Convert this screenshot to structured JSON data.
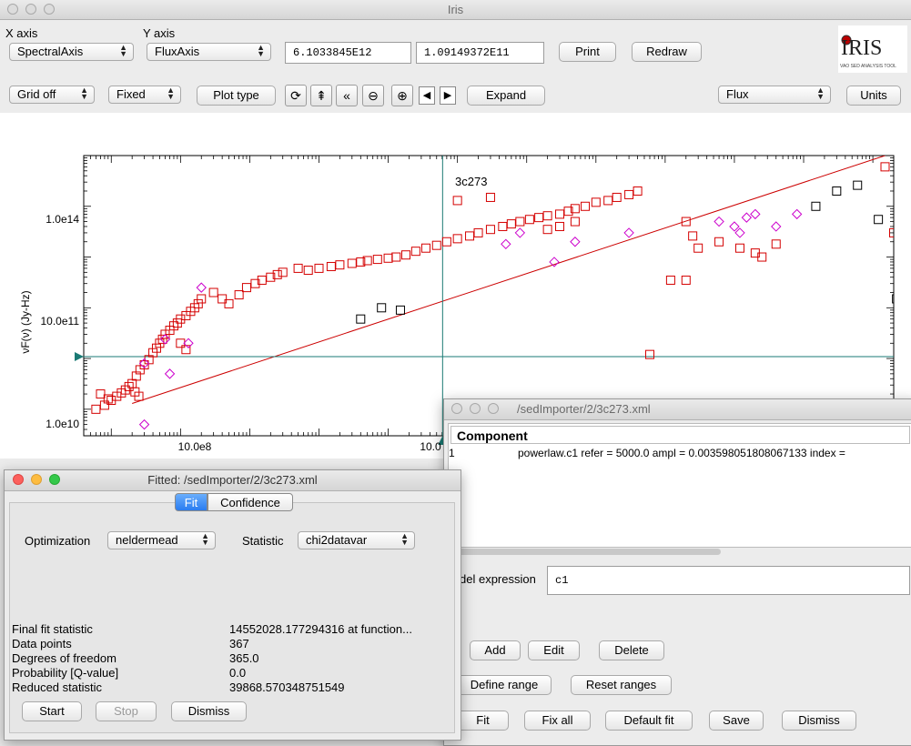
{
  "main_window": {
    "title": "Iris",
    "x_axis_label": "X axis",
    "y_axis_label": "Y axis",
    "x_axis_value": "SpectralAxis",
    "y_axis_value": "FluxAxis",
    "x_coord": "6.1033845E12",
    "y_coord": "1.09149372E11",
    "print_label": "Print",
    "redraw_label": "Redraw",
    "logo_text": "IRIS",
    "logo_sub": "VAO SED ANALYSIS TOOL",
    "grid_value": "Grid off",
    "scale_value": "Fixed",
    "plot_type_label": "Plot type",
    "expand_label": "Expand",
    "flux_value": "Flux",
    "units_label": "Units"
  },
  "plot": {
    "title": "3c273",
    "ylabel": "νF(ν) (Jy-Hz)",
    "y_ticks": [
      "1.0e14",
      "10.0e11",
      "1.0e10"
    ],
    "x_ticks": [
      "10.0e8",
      "10.0"
    ]
  },
  "chart_data": {
    "type": "scatter",
    "title": "3c273",
    "xlabel": "",
    "ylabel": "νF(ν) (Jy-Hz)",
    "x_scale": "log",
    "y_scale": "log",
    "xlim": [
      40000000.0,
      2e+19
    ],
    "ylim": [
      3000000000.0,
      1000000000000000.0
    ],
    "grid": false,
    "crosshair": {
      "x": 6103384500000.0,
      "y": 109149372000.0
    },
    "fit_line": {
      "x": [
        200000000.0,
        1.5e+19
      ],
      "y": [
        13000000000.0,
        1000000000000000.0
      ],
      "color": "#cc0000"
    },
    "series": [
      {
        "marker": "square",
        "color": "#d40000",
        "points": [
          [
            60000000.0,
            10000000000.0
          ],
          [
            70000000.0,
            20000000000.0
          ],
          [
            80000000.0,
            12000000000.0
          ],
          [
            90000000.0,
            16000000000.0
          ],
          [
            100000000.0,
            15000000000.0
          ],
          [
            120000000.0,
            18000000000.0
          ],
          [
            140000000.0,
            21000000000.0
          ],
          [
            160000000.0,
            24000000000.0
          ],
          [
            180000000.0,
            28000000000.0
          ],
          [
            200000000.0,
            32000000000.0
          ],
          [
            230000000.0,
            45000000000.0
          ],
          [
            260000000.0,
            60000000000.0
          ],
          [
            300000000.0,
            75000000000.0
          ],
          [
            350000000.0,
            95000000000.0
          ],
          [
            400000000.0,
            130000000000.0
          ],
          [
            450000000.0,
            160000000000.0
          ],
          [
            500000000.0,
            200000000000.0
          ],
          [
            550000000.0,
            240000000000.0
          ],
          [
            600000000.0,
            300000000000.0
          ],
          [
            700000000.0,
            360000000000.0
          ],
          [
            800000000.0,
            440000000000.0
          ],
          [
            900000000.0,
            500000000000.0
          ],
          [
            1000000000.0,
            600000000000.0
          ],
          [
            1200000000.0,
            700000000000.0
          ],
          [
            1400000000.0,
            850000000000.0
          ],
          [
            1600000000.0,
            1000000000000.0
          ],
          [
            1800000000.0,
            1200000000000.0
          ],
          [
            2000000000.0,
            1500000000000.0
          ],
          [
            1000000000.0,
            200000000000.0
          ],
          [
            1200000000.0,
            150000000000.0
          ],
          [
            220000000.0,
            22000000000.0
          ],
          [
            250000000.0,
            18000000000.0
          ],
          [
            3000000000.0,
            2000000000000.0
          ],
          [
            4000000000.0,
            1500000000000.0
          ],
          [
            5000000000.0,
            1200000000000.0
          ],
          [
            7000000000.0,
            1800000000000.0
          ],
          [
            9000000000.0,
            2500000000000.0
          ],
          [
            12000000000.0,
            3000000000000.0
          ],
          [
            15000000000.0,
            3500000000000.0
          ],
          [
            20000000000.0,
            4000000000000.0
          ],
          [
            25000000000.0,
            4500000000000.0
          ],
          [
            30000000000.0,
            5000000000000.0
          ],
          [
            50000000000.0,
            6000000000000.0
          ],
          [
            70000000000.0,
            5500000000000.0
          ],
          [
            100000000000.0,
            6000000000000.0
          ],
          [
            150000000000.0,
            6500000000000.0
          ],
          [
            200000000000.0,
            7000000000000.0
          ],
          [
            300000000000.0,
            7500000000000.0
          ],
          [
            400000000000.0,
            8000000000000.0
          ],
          [
            500000000000.0,
            8500000000000.0
          ],
          [
            700000000000.0,
            9000000000000.0
          ],
          [
            1000000000000.0,
            9500000000000.0
          ],
          [
            1300000000000.0,
            10000000000000.0
          ],
          [
            1800000000000.0,
            11000000000000.0
          ],
          [
            2500000000000.0,
            13000000000000.0
          ],
          [
            3500000000000.0,
            15000000000000.0
          ],
          [
            5000000000000.0,
            17000000000000.0
          ],
          [
            7000000000000.0,
            20000000000000.0
          ],
          [
            10000000000000.0,
            23000000000000.0
          ],
          [
            15000000000000.0,
            26000000000000.0
          ],
          [
            20000000000000.0,
            30000000000000.0
          ],
          [
            30000000000000.0,
            35000000000000.0
          ],
          [
            45000000000000.0,
            40000000000000.0
          ],
          [
            60000000000000.0,
            45000000000000.0
          ],
          [
            80000000000000.0,
            50000000000000.0
          ],
          [
            110000000000000.0,
            55000000000000.0
          ],
          [
            150000000000000.0,
            60000000000000.0
          ],
          [
            200000000000000.0,
            65000000000000.0
          ],
          [
            300000000000000.0,
            70000000000000.0
          ],
          [
            400000000000000.0,
            80000000000000.0
          ],
          [
            500000000000000.0,
            90000000000000.0
          ],
          [
            700000000000000.0,
            100000000000000.0
          ],
          [
            1000000000000000.0,
            120000000000000.0
          ],
          [
            1500000000000000.0,
            130000000000000.0
          ],
          [
            2000000000000000.0,
            150000000000000.0
          ],
          [
            3000000000000000.0,
            170000000000000.0
          ],
          [
            4000000000000000.0,
            200000000000000.0
          ],
          [
            200000000000000.0,
            35000000000000.0
          ],
          [
            300000000000000.0,
            40000000000000.0
          ],
          [
            500000000000000.0,
            50000000000000.0
          ],
          [
            10000000000000.0,
            130000000000000.0
          ],
          [
            30000000000000.0,
            150000000000000.0
          ],
          [
            1.2e+16,
            3500000000000.0
          ],
          [
            2e+16,
            3500000000000.0
          ],
          [
            6000000000000000.0,
            120000000000.0
          ],
          [
            2.5e+16,
            26000000000000.0
          ],
          [
            3e+16,
            15000000000000.0
          ],
          [
            6e+16,
            20000000000000.0
          ],
          [
            1.2e+17,
            15000000000000.0
          ],
          [
            2e+17,
            12000000000000.0
          ],
          [
            2.5e+17,
            10000000000000.0
          ],
          [
            4e+17,
            18000000000000.0
          ],
          [
            2e+16,
            50000000000000.0
          ],
          [
            1.5e+19,
            600000000000000.0
          ],
          [
            2e+19,
            30000000000000.0
          ]
        ]
      },
      {
        "marker": "diamond",
        "color": "#cc00cc",
        "points": [
          [
            300000000.0,
            80000000000.0
          ],
          [
            600000000.0,
            240000000000.0
          ],
          [
            1300000000.0,
            200000000000.0
          ],
          [
            700000000.0,
            50000000000.0
          ],
          [
            2000000000.0,
            2500000000000.0
          ],
          [
            50000000000000.0,
            18000000000000.0
          ],
          [
            80000000000000.0,
            30000000000000.0
          ],
          [
            500000000000000.0,
            20000000000000.0
          ],
          [
            3000000000000000.0,
            30000000000000.0
          ],
          [
            250000000000000.0,
            8000000000000.0
          ],
          [
            6e+16,
            50000000000000.0
          ],
          [
            1e+17,
            40000000000000.0
          ],
          [
            1.2e+17,
            30000000000000.0
          ],
          [
            1.5e+17,
            60000000000000.0
          ],
          [
            2e+17,
            70000000000000.0
          ],
          [
            4e+17,
            40000000000000.0
          ],
          [
            8e+17,
            70000000000000.0
          ],
          [
            300000000.0,
            5000000000.0
          ]
        ]
      },
      {
        "marker": "square",
        "color": "#000000",
        "points": [
          [
            1.5e+18,
            100000000000000.0
          ],
          [
            3e+18,
            200000000000000.0
          ],
          [
            6e+18,
            260000000000000.0
          ],
          [
            1.2e+19,
            55000000000000.0
          ],
          [
            2.2e+19,
            1500000000000.0
          ],
          [
            1500000000000.0,
            900000000000.0
          ],
          [
            800000000000.0,
            1000000000000.0
          ],
          [
            400000000000.0,
            600000000000.0
          ]
        ]
      }
    ]
  },
  "component_window": {
    "title": "/sedImporter/2/3c273.xml",
    "header": "Component",
    "row_index": "1",
    "row_text": "powerlaw.c1   refer = 5000.0 ampl = 0.003598051808067133 index =",
    "model_expr_label": "del expression",
    "model_expr_value": "c1",
    "add_label": "Add",
    "edit_label": "Edit",
    "delete_label": "Delete",
    "define_range_label": "Define range",
    "reset_ranges_label": "Reset ranges",
    "fit_label": "Fit",
    "fix_all_label": "Fix all",
    "default_fit_label": "Default fit",
    "save_label": "Save",
    "dismiss_label": "Dismiss"
  },
  "fitted_window": {
    "title": "Fitted:  /sedImporter/2/3c273.xml",
    "tab_fit": "Fit",
    "tab_confidence": "Confidence",
    "optimization_label": "Optimization",
    "optimization_value": "neldermead",
    "statistic_label": "Statistic",
    "statistic_value": "chi2datavar",
    "stats": [
      {
        "label": "Final fit statistic",
        "value": "14552028.177294316  at function..."
      },
      {
        "label": "Data points",
        "value": "367"
      },
      {
        "label": "Degrees of freedom",
        "value": "365.0"
      },
      {
        "label": "Probability [Q-value]",
        "value": "0.0"
      },
      {
        "label": "Reduced statistic",
        "value": "39868.570348751549"
      }
    ],
    "start_label": "Start",
    "stop_label": "Stop",
    "dismiss_label": "Dismiss"
  }
}
